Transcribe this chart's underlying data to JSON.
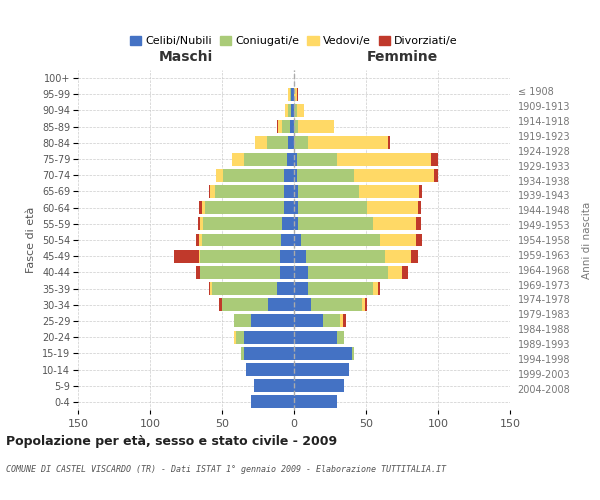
{
  "age_groups": [
    "0-4",
    "5-9",
    "10-14",
    "15-19",
    "20-24",
    "25-29",
    "30-34",
    "35-39",
    "40-44",
    "45-49",
    "50-54",
    "55-59",
    "60-64",
    "65-69",
    "70-74",
    "75-79",
    "80-84",
    "85-89",
    "90-94",
    "95-99",
    "100+"
  ],
  "birth_years": [
    "2004-2008",
    "1999-2003",
    "1994-1998",
    "1989-1993",
    "1984-1988",
    "1979-1983",
    "1974-1978",
    "1969-1973",
    "1964-1968",
    "1959-1963",
    "1954-1958",
    "1949-1953",
    "1944-1948",
    "1939-1943",
    "1934-1938",
    "1929-1933",
    "1924-1928",
    "1919-1923",
    "1914-1918",
    "1909-1913",
    "≤ 1908"
  ],
  "maschi": {
    "celibi": [
      30,
      28,
      33,
      35,
      35,
      30,
      18,
      12,
      10,
      10,
      9,
      8,
      7,
      7,
      7,
      5,
      4,
      3,
      2,
      2,
      0
    ],
    "coniugati": [
      0,
      0,
      0,
      2,
      5,
      12,
      32,
      45,
      55,
      55,
      55,
      55,
      55,
      48,
      42,
      30,
      15,
      5,
      2,
      1,
      0
    ],
    "vedovi": [
      0,
      0,
      0,
      0,
      2,
      0,
      0,
      1,
      0,
      1,
      2,
      2,
      2,
      3,
      5,
      8,
      8,
      3,
      2,
      1,
      0
    ],
    "divorziati": [
      0,
      0,
      0,
      0,
      0,
      0,
      2,
      1,
      3,
      17,
      2,
      2,
      2,
      1,
      0,
      0,
      0,
      1,
      0,
      0,
      0
    ]
  },
  "femmine": {
    "nubili": [
      30,
      35,
      38,
      40,
      30,
      20,
      12,
      10,
      10,
      8,
      5,
      3,
      3,
      3,
      2,
      2,
      0,
      0,
      0,
      0,
      0
    ],
    "coniugate": [
      0,
      0,
      0,
      2,
      5,
      12,
      35,
      45,
      55,
      55,
      55,
      52,
      48,
      42,
      40,
      28,
      10,
      3,
      2,
      0,
      0
    ],
    "vedove": [
      0,
      0,
      0,
      0,
      0,
      2,
      2,
      3,
      10,
      18,
      25,
      30,
      35,
      42,
      55,
      65,
      55,
      25,
      5,
      2,
      0
    ],
    "divorziate": [
      0,
      0,
      0,
      0,
      0,
      2,
      2,
      2,
      4,
      5,
      4,
      3,
      2,
      2,
      3,
      5,
      2,
      0,
      0,
      1,
      0
    ]
  },
  "colors": {
    "celibi": "#4472C4",
    "coniugati": "#AACB78",
    "vedovi": "#FFD966",
    "divorziati": "#C0392B"
  },
  "title": "Popolazione per età, sesso e stato civile - 2009",
  "subtitle": "COMUNE DI CASTEL VISCARDO (TR) - Dati ISTAT 1° gennaio 2009 - Elaborazione TUTTITALIA.IT",
  "xlabel_maschi": "Maschi",
  "xlabel_femmine": "Femmine",
  "ylabel": "Fasce di età",
  "ylabel_right": "Anni di nascita",
  "xlim": 150,
  "bg_color": "#FFFFFF",
  "grid_color": "#CCCCCC"
}
